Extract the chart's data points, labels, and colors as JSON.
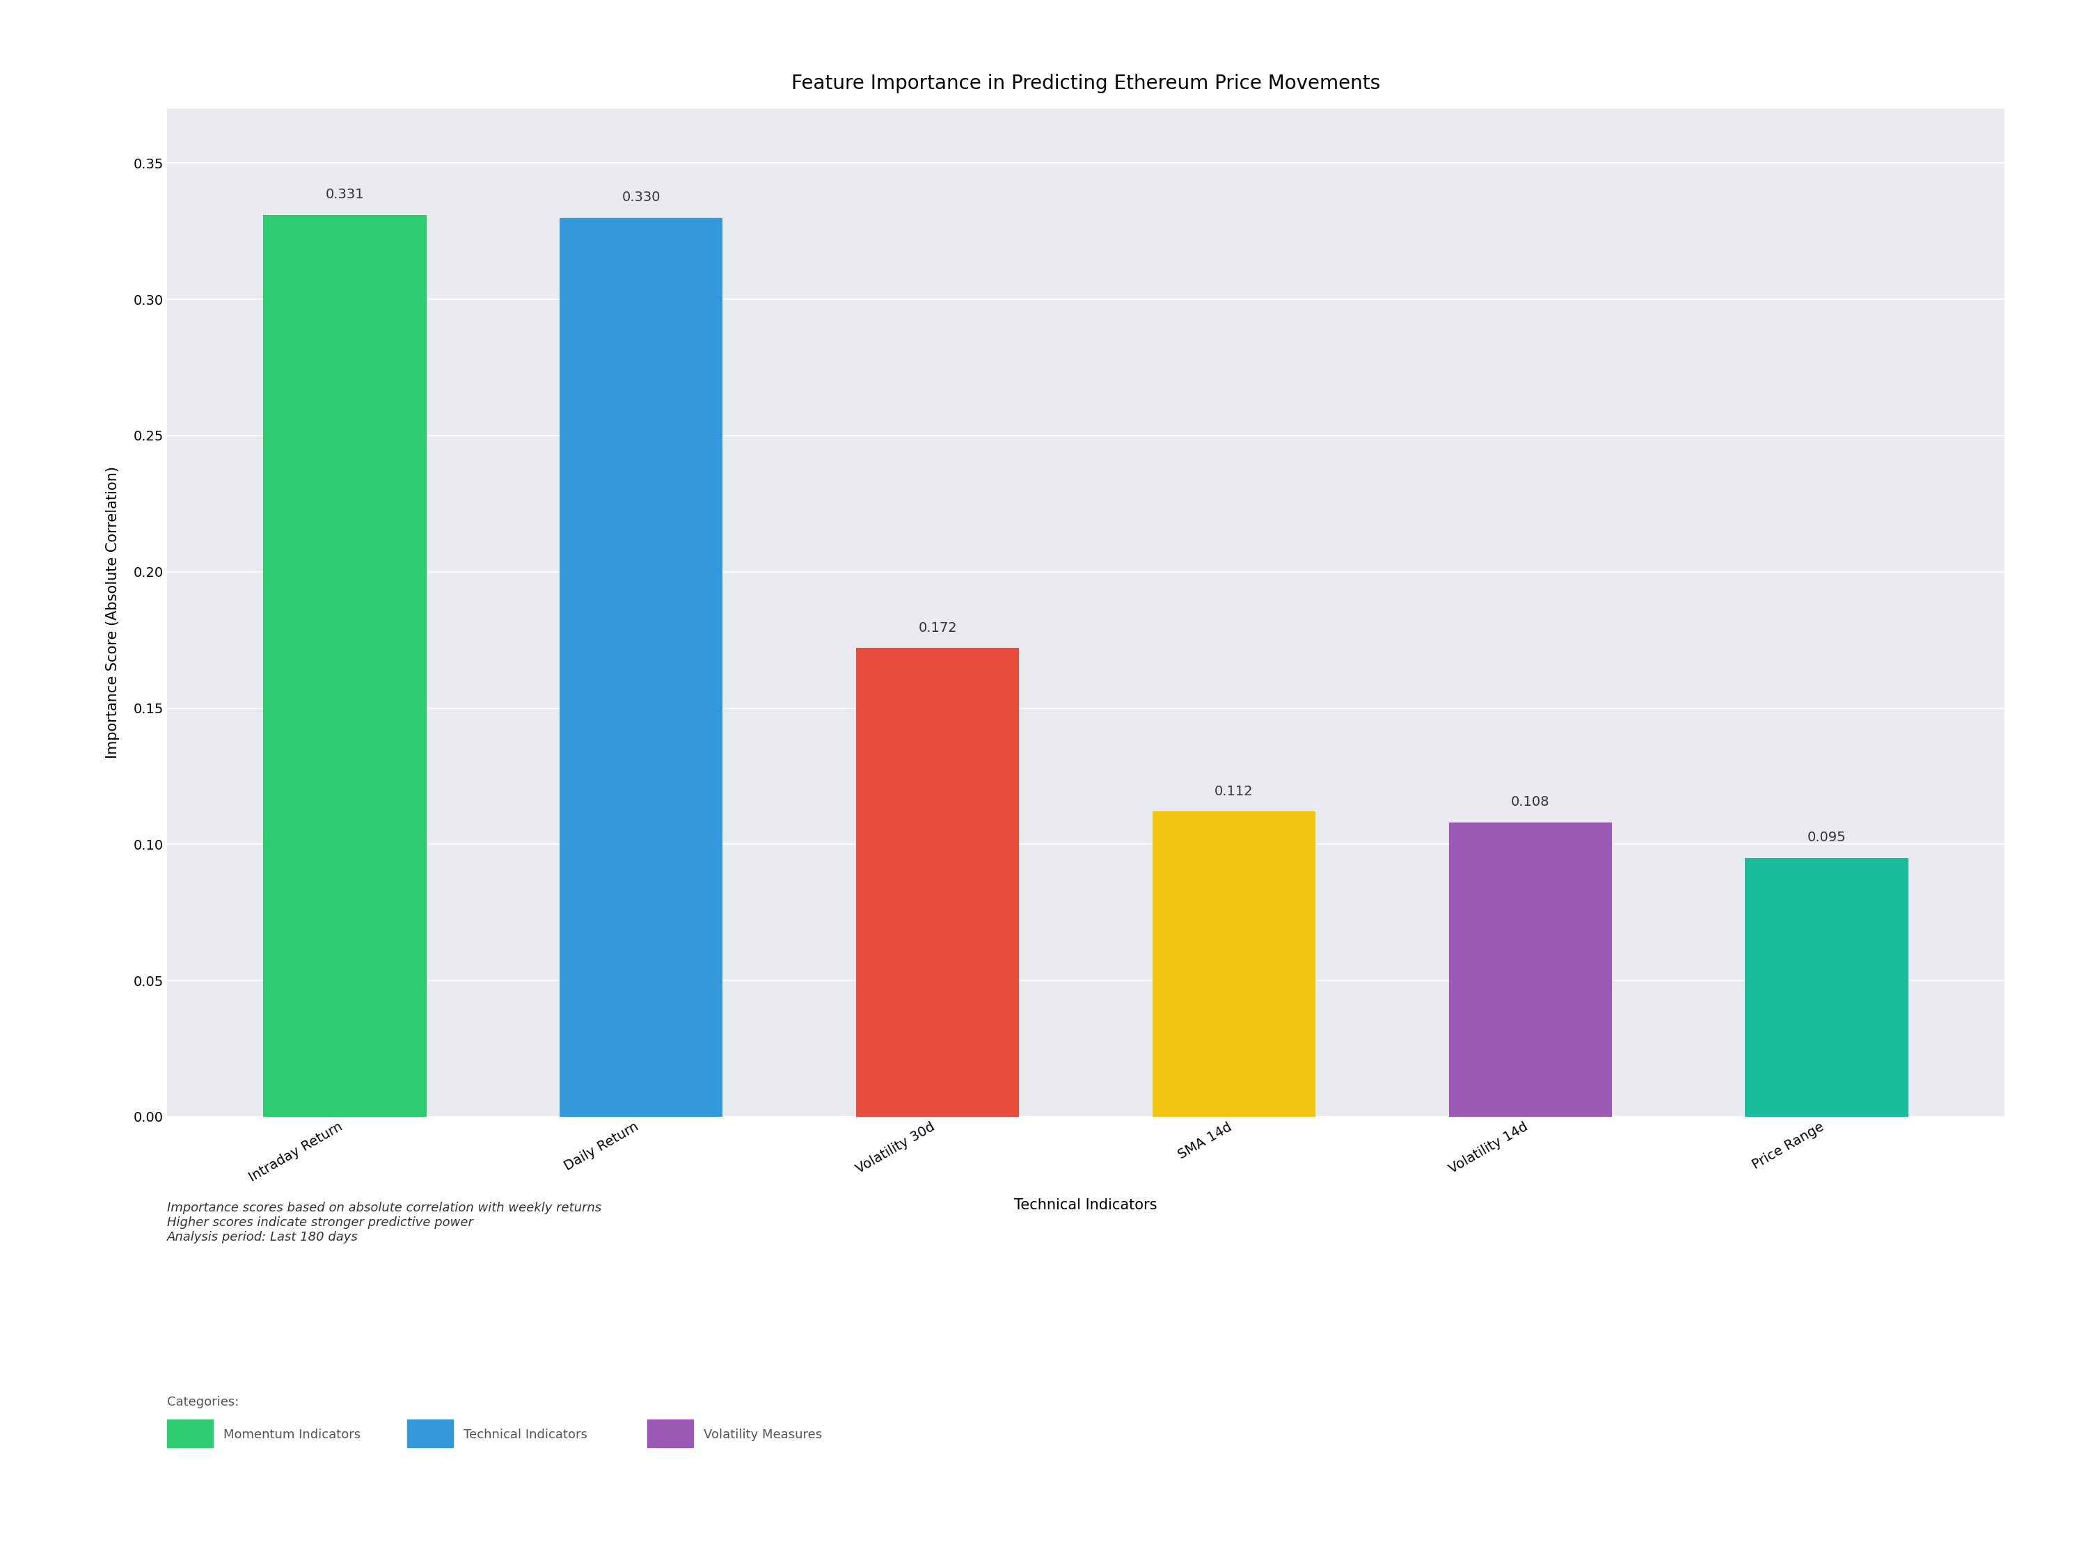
{
  "title": "Feature Importance in Predicting Ethereum Price Movements",
  "categories": [
    "Intraday Return",
    "Daily Return",
    "Volatility 30d",
    "SMA 14d",
    "Volatility 14d",
    "Price Range"
  ],
  "values": [
    0.331,
    0.33,
    0.172,
    0.112,
    0.108,
    0.095
  ],
  "bar_colors": [
    "#2ecc71",
    "#3498db",
    "#e74c3c",
    "#f1c40f",
    "#9b59b6",
    "#1abc9c"
  ],
  "xlabel": "Technical Indicators",
  "ylabel": "Importance Score (Absolute Correlation)",
  "ylim": [
    0,
    0.37
  ],
  "yticks": [
    0.0,
    0.05,
    0.1,
    0.15,
    0.2,
    0.25,
    0.3,
    0.35
  ],
  "plot_bg_color": "#e8eaf0",
  "title_fontsize": 20,
  "label_fontsize": 15,
  "tick_fontsize": 14,
  "annotation_fontsize": 14,
  "footnote_line1": "Importance scores based on absolute correlation with weekly returns",
  "footnote_line2": "Higher scores indicate stronger predictive power",
  "footnote_line3": "Analysis period: Last 180 days",
  "legend_title": "Categories:",
  "legend_items": [
    "Momentum Indicators",
    "Technical Indicators",
    "Volatility Measures"
  ],
  "legend_colors": [
    "#2ecc71",
    "#3498db",
    "#9b59b6"
  ]
}
